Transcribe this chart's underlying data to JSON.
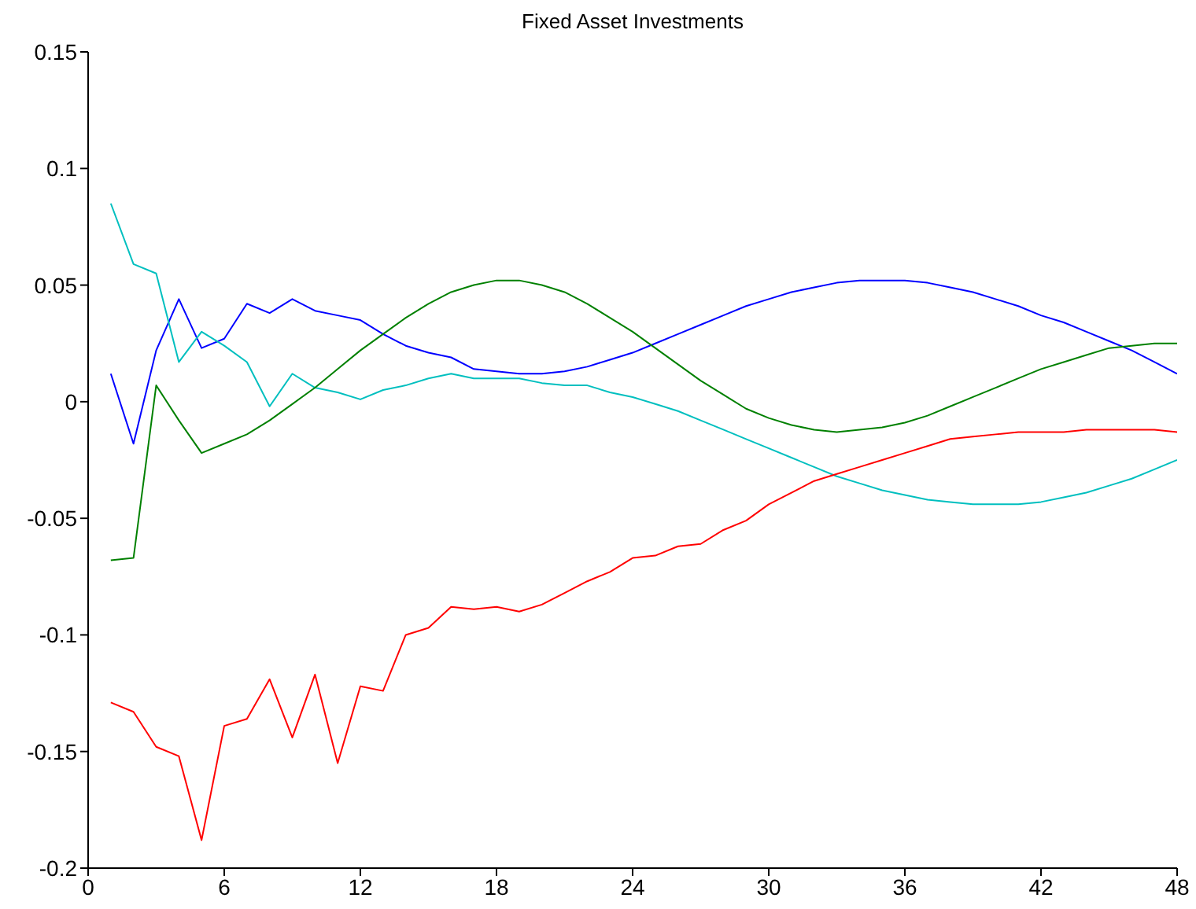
{
  "chart_data": {
    "type": "line",
    "title": "Fixed Asset Investments",
    "x": [
      1,
      2,
      3,
      4,
      5,
      6,
      7,
      8,
      9,
      10,
      11,
      12,
      13,
      14,
      15,
      16,
      17,
      18,
      19,
      20,
      21,
      22,
      23,
      24,
      25,
      26,
      27,
      28,
      29,
      30,
      31,
      32,
      33,
      34,
      35,
      36,
      37,
      38,
      39,
      40,
      41,
      42,
      43,
      44,
      45,
      46,
      47,
      48
    ],
    "series": [
      {
        "color": "#0000ff",
        "values": [
          0.012,
          -0.018,
          0.022,
          0.044,
          0.023,
          0.027,
          0.042,
          0.038,
          0.044,
          0.039,
          0.037,
          0.035,
          0.029,
          0.024,
          0.021,
          0.019,
          0.014,
          0.013,
          0.012,
          0.012,
          0.013,
          0.015,
          0.018,
          0.021,
          0.025,
          0.029,
          0.033,
          0.037,
          0.041,
          0.044,
          0.047,
          0.049,
          0.051,
          0.052,
          0.052,
          0.052,
          0.051,
          0.049,
          0.047,
          0.044,
          0.041,
          0.037,
          0.034,
          0.03,
          0.026,
          0.022,
          0.017,
          0.012
        ]
      },
      {
        "color": "#00bfbf",
        "values": [
          0.085,
          0.059,
          0.055,
          0.017,
          0.03,
          0.024,
          0.017,
          -0.002,
          0.012,
          0.006,
          0.004,
          0.001,
          0.005,
          0.007,
          0.01,
          0.012,
          0.01,
          0.01,
          0.01,
          0.008,
          0.007,
          0.007,
          0.004,
          0.002,
          -0.001,
          -0.004,
          -0.008,
          -0.012,
          -0.016,
          -0.02,
          -0.024,
          -0.028,
          -0.032,
          -0.035,
          -0.038,
          -0.04,
          -0.042,
          -0.043,
          -0.044,
          -0.044,
          -0.044,
          -0.043,
          -0.041,
          -0.039,
          -0.036,
          -0.033,
          -0.029,
          -0.025
        ]
      },
      {
        "color": "#008000",
        "values": [
          -0.068,
          -0.067,
          0.007,
          -0.008,
          -0.022,
          -0.018,
          -0.014,
          -0.008,
          -0.001,
          0.006,
          0.014,
          0.022,
          0.029,
          0.036,
          0.042,
          0.047,
          0.05,
          0.052,
          0.052,
          0.05,
          0.047,
          0.042,
          0.036,
          0.03,
          0.023,
          0.016,
          0.009,
          0.003,
          -0.003,
          -0.007,
          -0.01,
          -0.012,
          -0.013,
          -0.012,
          -0.011,
          -0.009,
          -0.006,
          -0.002,
          0.002,
          0.006,
          0.01,
          0.014,
          0.017,
          0.02,
          0.023,
          0.024,
          0.025,
          0.025
        ]
      },
      {
        "color": "#ff0000",
        "values": [
          -0.129,
          -0.133,
          -0.148,
          -0.152,
          -0.188,
          -0.139,
          -0.136,
          -0.119,
          -0.144,
          -0.117,
          -0.155,
          -0.122,
          -0.124,
          -0.1,
          -0.097,
          -0.088,
          -0.089,
          -0.088,
          -0.09,
          -0.087,
          -0.082,
          -0.077,
          -0.073,
          -0.067,
          -0.066,
          -0.062,
          -0.061,
          -0.055,
          -0.051,
          -0.044,
          -0.039,
          -0.034,
          -0.031,
          -0.028,
          -0.025,
          -0.022,
          -0.019,
          -0.016,
          -0.015,
          -0.014,
          -0.013,
          -0.013,
          -0.013,
          -0.012,
          -0.012,
          -0.012,
          -0.012,
          -0.013
        ]
      }
    ],
    "xlim": [
      0,
      48
    ],
    "xticks": [
      0,
      6,
      12,
      18,
      24,
      30,
      36,
      42,
      48
    ],
    "ylim": [
      -0.2,
      0.15
    ],
    "yticks": [
      -0.2,
      -0.15,
      -0.1,
      -0.05,
      0,
      0.05,
      0.1,
      0.15
    ],
    "grid": false,
    "legend": false,
    "marker": "none",
    "line_style": "solid"
  }
}
